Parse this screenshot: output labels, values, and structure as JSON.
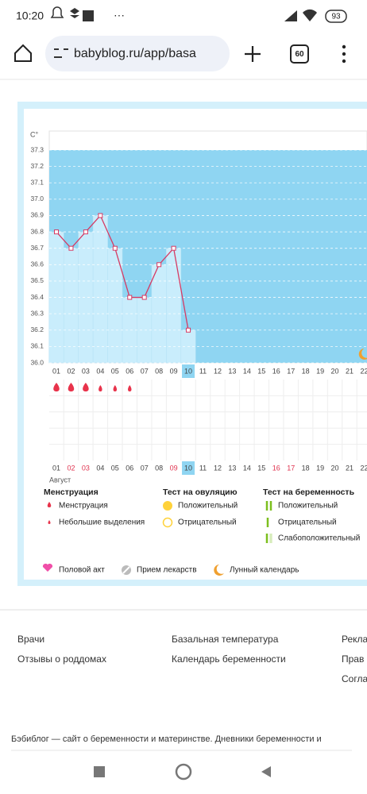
{
  "status_bar": {
    "time": "10:20",
    "battery": "93",
    "more": "···"
  },
  "browser": {
    "url": "babyblog.ru/app/basa",
    "tabs": "60"
  },
  "chart_data": {
    "type": "line",
    "ylabel": "C°",
    "xlabel": "Август",
    "categories": [
      "01",
      "02",
      "03",
      "04",
      "05",
      "06",
      "07",
      "08",
      "09",
      "10",
      "11",
      "12",
      "13",
      "14",
      "15",
      "16",
      "17",
      "18",
      "19",
      "20",
      "21",
      "22"
    ],
    "values": [
      36.8,
      36.7,
      36.8,
      36.9,
      36.7,
      36.4,
      36.4,
      36.6,
      36.7,
      36.2,
      null,
      null,
      null,
      null,
      null,
      null,
      null,
      null,
      null,
      null,
      null,
      null
    ],
    "color": "#d63a63",
    "ylim": [
      36.0,
      37.3
    ],
    "yticks": [
      {
        "value": 36,
        "label": "36.0"
      },
      36.1,
      36.2,
      36.3,
      36.4,
      36.5,
      36.6,
      36.7,
      36.8,
      36.9,
      {
        "value": 37,
        "label": "37.0"
      },
      37.1,
      37.2,
      37.3
    ],
    "grid": true,
    "selected": "10",
    "menstruation_days": [
      "01",
      "02",
      "03"
    ],
    "spotting_days": [
      "04",
      "05",
      "06"
    ],
    "moon_days": [
      "22"
    ],
    "holiday_days": [
      "02",
      "03",
      "09",
      "16",
      "17"
    ]
  },
  "legend": {
    "menstruation": {
      "title": "Менструация",
      "items": [
        "Менструация",
        "Небольшие выделения"
      ]
    },
    "ovulation": {
      "title": "Тест на овуляцию",
      "items": [
        "Положительный",
        "Отрицательный"
      ]
    },
    "pregnancy": {
      "title": "Тест на беременность",
      "items": [
        "Положительный",
        "Отрицательный",
        "Слабоположительный"
      ]
    },
    "other": [
      "Половой акт",
      "Прием лекарств",
      "Лунный календарь"
    ]
  },
  "footer": {
    "links": [
      [
        "Врачи",
        "Отзывы о роддомах"
      ],
      [
        "Базальная температура",
        "Календарь беременности"
      ],
      [
        "Рекла",
        "Прав",
        "Согла"
      ]
    ],
    "about": "Бэбиблог — сайт о беременности и материнстве. Дневники беременности и"
  }
}
